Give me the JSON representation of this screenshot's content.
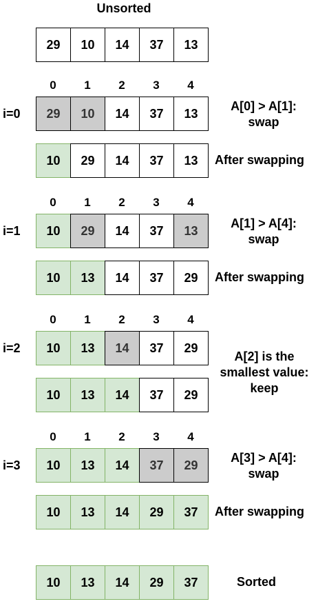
{
  "title": "Unsorted",
  "unsorted": [
    "29",
    "10",
    "14",
    "37",
    "13"
  ],
  "indices": [
    "0",
    "1",
    "2",
    "3",
    "4"
  ],
  "steps": [
    {
      "label": "i=0",
      "compare": [
        "29",
        "10",
        "14",
        "37",
        "13"
      ],
      "compare_states": [
        "gray",
        "gray",
        "white",
        "white",
        "white"
      ],
      "note_line1": "A[0] > A[1]:",
      "note_line2": "swap",
      "result": [
        "10",
        "29",
        "14",
        "37",
        "13"
      ],
      "result_states": [
        "green",
        "white",
        "white",
        "white",
        "white"
      ],
      "result_label": "After swapping"
    },
    {
      "label": "i=1",
      "compare": [
        "10",
        "29",
        "14",
        "37",
        "13"
      ],
      "compare_states": [
        "green",
        "gray",
        "white",
        "white",
        "gray"
      ],
      "note_line1": "A[1] > A[4]:",
      "note_line2": "swap",
      "result": [
        "10",
        "13",
        "14",
        "37",
        "29"
      ],
      "result_states": [
        "green",
        "green",
        "white",
        "white",
        "white"
      ],
      "result_label": "After swapping"
    },
    {
      "label": "i=2",
      "compare": [
        "10",
        "13",
        "14",
        "37",
        "29"
      ],
      "compare_states": [
        "green",
        "green",
        "gray",
        "white",
        "white"
      ],
      "note_line1": "A[2] is the",
      "note_line2": "smallest value:",
      "note_line3": "keep",
      "result": [
        "10",
        "13",
        "14",
        "37",
        "29"
      ],
      "result_states": [
        "green",
        "green",
        "green",
        "white",
        "white"
      ],
      "result_label": ""
    },
    {
      "label": "i=3",
      "compare": [
        "10",
        "13",
        "14",
        "37",
        "29"
      ],
      "compare_states": [
        "green",
        "green",
        "green",
        "gray",
        "gray"
      ],
      "note_line1": "A[3] > A[4]:",
      "note_line2": "swap",
      "result": [
        "10",
        "13",
        "14",
        "29",
        "37"
      ],
      "result_states": [
        "green",
        "green",
        "green",
        "green",
        "green"
      ],
      "result_label": "After swapping"
    }
  ],
  "sorted": [
    "10",
    "13",
    "14",
    "29",
    "37"
  ],
  "sorted_label": "Sorted",
  "colors": {
    "sorted_fill": "#d5e8d4",
    "sorted_border": "#82b366",
    "compare_fill": "#cccccc"
  }
}
